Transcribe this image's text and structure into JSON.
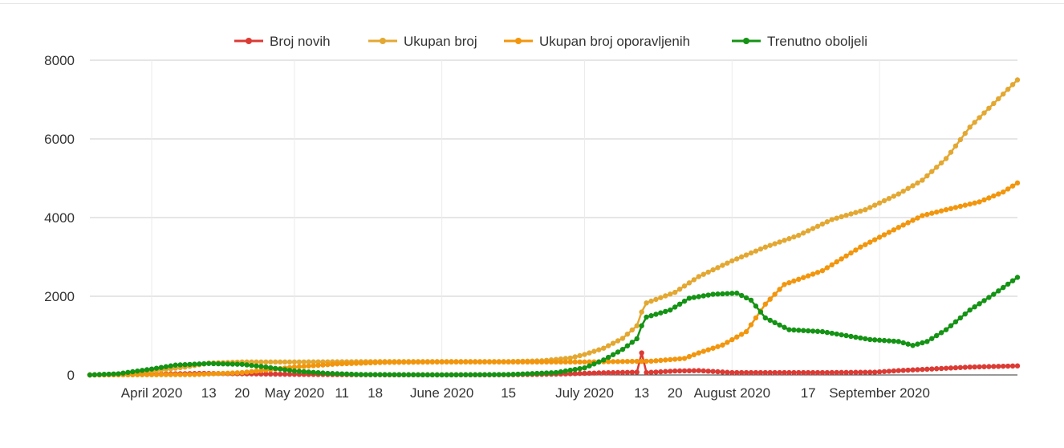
{
  "chart_data": {
    "type": "line",
    "x_start": "2020-03-19",
    "x_end": "2020-09-30",
    "xlim": [
      "2020-03-19",
      "2020-09-30"
    ],
    "ylim": [
      0,
      8000
    ],
    "y_ticks": [
      0,
      2000,
      4000,
      6000,
      8000
    ],
    "y_tick_labels": [
      "0",
      "2000",
      "4000",
      "6000",
      "8000"
    ],
    "x_ticks": [
      {
        "date": "2020-04-01",
        "label": "April 2020"
      },
      {
        "date": "2020-04-13",
        "label": "13"
      },
      {
        "date": "2020-04-20",
        "label": "20"
      },
      {
        "date": "2020-05-01",
        "label": "May 2020"
      },
      {
        "date": "2020-05-11",
        "label": "11"
      },
      {
        "date": "2020-05-18",
        "label": "18"
      },
      {
        "date": "2020-06-01",
        "label": "June 2020"
      },
      {
        "date": "2020-06-15",
        "label": "15"
      },
      {
        "date": "2020-07-01",
        "label": "July 2020"
      },
      {
        "date": "2020-07-13",
        "label": "13"
      },
      {
        "date": "2020-07-20",
        "label": "20"
      },
      {
        "date": "2020-08-01",
        "label": "August 2020"
      },
      {
        "date": "2020-08-17",
        "label": "17"
      },
      {
        "date": "2020-09-01",
        "label": "September 2020"
      }
    ],
    "grid": true,
    "legend_position": "top",
    "series": [
      {
        "name": "Broj novih",
        "color": "#db3b34",
        "points": [
          [
            "2020-03-19",
            0
          ],
          [
            "2020-04-01",
            20
          ],
          [
            "2020-04-12",
            40
          ],
          [
            "2020-04-20",
            30
          ],
          [
            "2020-05-01",
            15
          ],
          [
            "2020-05-15",
            5
          ],
          [
            "2020-06-01",
            2
          ],
          [
            "2020-06-15",
            5
          ],
          [
            "2020-06-25",
            20
          ],
          [
            "2020-07-05",
            55
          ],
          [
            "2020-07-12",
            70
          ],
          [
            "2020-07-13",
            560
          ],
          [
            "2020-07-14",
            60
          ],
          [
            "2020-07-20",
            100
          ],
          [
            "2020-07-25",
            110
          ],
          [
            "2020-08-01",
            60
          ],
          [
            "2020-08-10",
            60
          ],
          [
            "2020-08-20",
            60
          ],
          [
            "2020-08-31",
            70
          ],
          [
            "2020-09-05",
            110
          ],
          [
            "2020-09-15",
            170
          ],
          [
            "2020-09-20",
            200
          ],
          [
            "2020-09-30",
            230
          ]
        ]
      },
      {
        "name": "Ukupan broj",
        "color": "#e3a832",
        "points": [
          [
            "2020-03-19",
            0
          ],
          [
            "2020-03-25",
            20
          ],
          [
            "2020-04-01",
            100
          ],
          [
            "2020-04-08",
            200
          ],
          [
            "2020-04-13",
            300
          ],
          [
            "2020-04-20",
            330
          ],
          [
            "2020-05-01",
            330
          ],
          [
            "2020-05-20",
            340
          ],
          [
            "2020-06-10",
            340
          ],
          [
            "2020-06-15",
            340
          ],
          [
            "2020-06-22",
            360
          ],
          [
            "2020-06-28",
            430
          ],
          [
            "2020-07-01",
            520
          ],
          [
            "2020-07-05",
            680
          ],
          [
            "2020-07-09",
            930
          ],
          [
            "2020-07-12",
            1250
          ],
          [
            "2020-07-13",
            1600
          ],
          [
            "2020-07-14",
            1830
          ],
          [
            "2020-07-20",
            2100
          ],
          [
            "2020-07-25",
            2500
          ],
          [
            "2020-08-01",
            2900
          ],
          [
            "2020-08-08",
            3250
          ],
          [
            "2020-08-15",
            3550
          ],
          [
            "2020-08-22",
            3950
          ],
          [
            "2020-08-29",
            4200
          ],
          [
            "2020-09-05",
            4600
          ],
          [
            "2020-09-10",
            4950
          ],
          [
            "2020-09-15",
            5500
          ],
          [
            "2020-09-20",
            6300
          ],
          [
            "2020-09-25",
            6900
          ],
          [
            "2020-09-30",
            7500
          ]
        ]
      },
      {
        "name": "Ukupan broj oporavljenih",
        "color": "#f2960d",
        "points": [
          [
            "2020-03-19",
            0
          ],
          [
            "2020-04-10",
            10
          ],
          [
            "2020-04-20",
            60
          ],
          [
            "2020-05-01",
            200
          ],
          [
            "2020-05-10",
            280
          ],
          [
            "2020-05-20",
            320
          ],
          [
            "2020-06-01",
            330
          ],
          [
            "2020-06-20",
            330
          ],
          [
            "2020-07-01",
            330
          ],
          [
            "2020-07-15",
            350
          ],
          [
            "2020-07-22",
            420
          ],
          [
            "2020-07-25",
            560
          ],
          [
            "2020-07-30",
            760
          ],
          [
            "2020-08-04",
            1100
          ],
          [
            "2020-08-08",
            1800
          ],
          [
            "2020-08-12",
            2300
          ],
          [
            "2020-08-20",
            2650
          ],
          [
            "2020-08-28",
            3250
          ],
          [
            "2020-09-05",
            3750
          ],
          [
            "2020-09-10",
            4050
          ],
          [
            "2020-09-15",
            4200
          ],
          [
            "2020-09-22",
            4400
          ],
          [
            "2020-09-27",
            4650
          ],
          [
            "2020-09-30",
            4880
          ]
        ]
      },
      {
        "name": "Trenutno oboljeli",
        "color": "#149314",
        "points": [
          [
            "2020-03-19",
            0
          ],
          [
            "2020-03-25",
            30
          ],
          [
            "2020-04-01",
            150
          ],
          [
            "2020-04-06",
            250
          ],
          [
            "2020-04-13",
            290
          ],
          [
            "2020-04-20",
            270
          ],
          [
            "2020-04-25",
            200
          ],
          [
            "2020-05-01",
            100
          ],
          [
            "2020-05-08",
            40
          ],
          [
            "2020-05-15",
            10
          ],
          [
            "2020-06-01",
            2
          ],
          [
            "2020-06-15",
            10
          ],
          [
            "2020-06-25",
            60
          ],
          [
            "2020-07-01",
            180
          ],
          [
            "2020-07-05",
            380
          ],
          [
            "2020-07-09",
            650
          ],
          [
            "2020-07-12",
            920
          ],
          [
            "2020-07-13",
            1250
          ],
          [
            "2020-07-14",
            1470
          ],
          [
            "2020-07-19",
            1650
          ],
          [
            "2020-07-23",
            1950
          ],
          [
            "2020-07-28",
            2050
          ],
          [
            "2020-08-02",
            2080
          ],
          [
            "2020-08-05",
            1900
          ],
          [
            "2020-08-08",
            1450
          ],
          [
            "2020-08-13",
            1150
          ],
          [
            "2020-08-20",
            1100
          ],
          [
            "2020-08-25",
            1000
          ],
          [
            "2020-08-30",
            900
          ],
          [
            "2020-09-05",
            850
          ],
          [
            "2020-09-08",
            750
          ],
          [
            "2020-09-11",
            850
          ],
          [
            "2020-09-15",
            1150
          ],
          [
            "2020-09-20",
            1650
          ],
          [
            "2020-09-25",
            2050
          ],
          [
            "2020-09-30",
            2480
          ]
        ]
      }
    ]
  }
}
